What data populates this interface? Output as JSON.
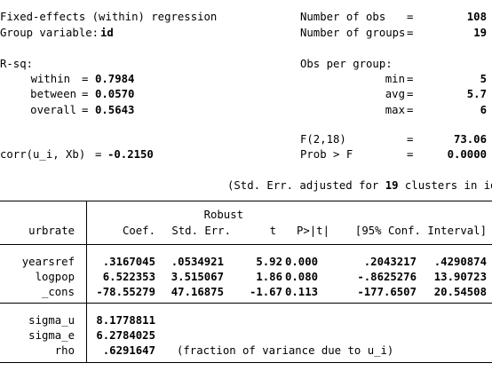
{
  "header": {
    "model_title": "Fixed-effects (within) regression",
    "group_var_label": "Group variable:",
    "group_var_value": "id",
    "nobs_label": "Number of obs",
    "nobs_value": "108",
    "ngroups_label": "Number of groups",
    "ngroups_value": "19",
    "rsq_label": "R-sq:",
    "within_label": "within",
    "within_value": "0.7984",
    "between_label": "between",
    "between_value": "0.0570",
    "overall_label": "overall",
    "overall_value": "0.5643",
    "obs_per_group_label": "Obs per group:",
    "min_label": "min",
    "min_value": "5",
    "avg_label": "avg",
    "avg_value": "5.7",
    "max_label": "max",
    "max_value": "6",
    "f_label": "F(2,18)",
    "f_value": "73.06",
    "prob_label": "Prob > F",
    "prob_value": "0.0000",
    "corr_label": "corr(u_i, Xb)",
    "corr_value": "-0.2150",
    "equals": "=",
    "se_note_prefix": "(Std. Err. adjusted for",
    "se_note_count": "19",
    "se_note_suffix": "clusters in id)"
  },
  "table": {
    "depvar": "urbrate",
    "col_coef": "Coef.",
    "col_se_line1": "Robust",
    "col_se_line2": "Std. Err.",
    "col_t": "t",
    "col_p": "P>|t|",
    "col_ci": "[95% Conf. Interval]",
    "rows": [
      {
        "name": "yearsref",
        "coef": ".3167045",
        "se": ".0534921",
        "t": "5.92",
        "p": "0.000",
        "lo": ".2043217",
        "hi": ".4290874"
      },
      {
        "name": "logpop",
        "coef": "6.522353",
        "se": "3.515067",
        "t": "1.86",
        "p": "0.080",
        "lo": "-.8625276",
        "hi": "13.90723"
      },
      {
        "name": "_cons",
        "coef": "-78.55279",
        "se": "47.16875",
        "t": "-1.67",
        "p": "0.113",
        "lo": "-177.6507",
        "hi": "20.54508"
      }
    ],
    "sigma_u_label": "sigma_u",
    "sigma_u_value": "8.1778811",
    "sigma_e_label": "sigma_e",
    "sigma_e_value": "6.2784025",
    "rho_label": "rho",
    "rho_value": ".6291647",
    "rho_note": "(fraction of variance due to u_i)"
  }
}
